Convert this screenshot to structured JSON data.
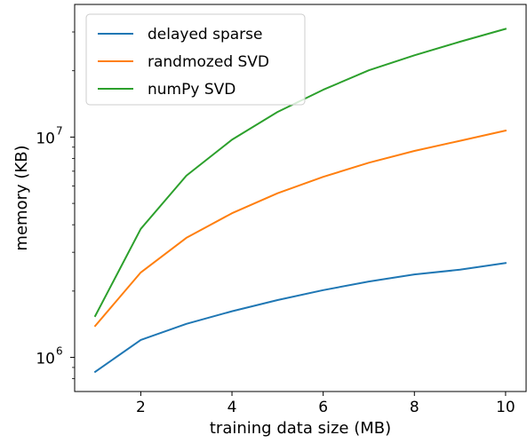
{
  "chart_data": {
    "type": "line",
    "title": "",
    "xlabel": "training data size (MB)",
    "ylabel": "memory (KB)",
    "x": [
      1,
      2,
      3,
      4,
      5,
      6,
      7,
      8,
      9,
      10
    ],
    "xlim": [
      0.55,
      10.45
    ],
    "ylim": [
      700000,
      40000000
    ],
    "yscale": "log",
    "xticks": [
      2,
      4,
      6,
      8,
      10
    ],
    "xtick_labels": [
      "2",
      "4",
      "6",
      "8",
      "10"
    ],
    "yticks": [
      1000000,
      10000000
    ],
    "ytick_labels": [
      {
        "base": "10",
        "exp": "6"
      },
      {
        "base": "10",
        "exp": "7"
      }
    ],
    "grid": false,
    "legend_position": "top-left",
    "series": [
      {
        "name": "delayed sparse",
        "color": "#1f77b4",
        "values": [
          860000,
          1200000,
          1420000,
          1620000,
          1820000,
          2020000,
          2210000,
          2380000,
          2500000,
          2680000
        ]
      },
      {
        "name": "randmozed SVD",
        "color": "#ff7f0e",
        "values": [
          1390000,
          2430000,
          3490000,
          4510000,
          5560000,
          6600000,
          7650000,
          8650000,
          9620000,
          10700000
        ]
      },
      {
        "name": "numPy SVD",
        "color": "#2ca02c",
        "values": [
          1540000,
          3830000,
          6680000,
          9730000,
          13000000,
          16400000,
          20100000,
          23500000,
          27100000,
          31000000
        ]
      }
    ]
  }
}
